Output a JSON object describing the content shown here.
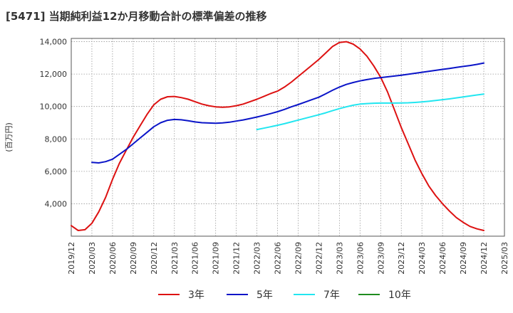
{
  "chart_data": {
    "type": "line",
    "title": "[5471]  当期純利益12か月移動合計の標準偏差の推移",
    "ylabel": "(百万円)",
    "xlabel": "",
    "ylim": [
      2000,
      14200
    ],
    "yticks": [
      4000,
      6000,
      8000,
      10000,
      12000,
      14000
    ],
    "ytick_labels": [
      "4,000",
      "6,000",
      "8,000",
      "10,000",
      "12,000",
      "14,000"
    ],
    "xticks": [
      "2019/12",
      "2020/03",
      "2020/06",
      "2020/09",
      "2020/12",
      "2021/03",
      "2021/06",
      "2021/09",
      "2021/12",
      "2022/03",
      "2022/06",
      "2022/09",
      "2022/12",
      "2023/03",
      "2023/06",
      "2023/09",
      "2023/12",
      "2024/03",
      "2024/06",
      "2024/09",
      "2024/12",
      "2025/03"
    ],
    "grid": true,
    "legend_position": "bottom",
    "series": [
      {
        "name": "3年",
        "color": "#dd1111",
        "points": [
          [
            "2019/12",
            2650
          ],
          [
            "2020/01",
            2350
          ],
          [
            "2020/02",
            2400
          ],
          [
            "2020/03",
            2800
          ],
          [
            "2020/04",
            3500
          ],
          [
            "2020/05",
            4400
          ],
          [
            "2020/06",
            5500
          ],
          [
            "2020/07",
            6500
          ],
          [
            "2020/08",
            7300
          ],
          [
            "2020/09",
            8100
          ],
          [
            "2020/10",
            8800
          ],
          [
            "2020/11",
            9500
          ],
          [
            "2020/12",
            10100
          ],
          [
            "2021/01",
            10450
          ],
          [
            "2021/02",
            10600
          ],
          [
            "2021/03",
            10620
          ],
          [
            "2021/04",
            10550
          ],
          [
            "2021/05",
            10450
          ],
          [
            "2021/06",
            10300
          ],
          [
            "2021/07",
            10150
          ],
          [
            "2021/08",
            10050
          ],
          [
            "2021/09",
            9980
          ],
          [
            "2021/10",
            9950
          ],
          [
            "2021/11",
            9980
          ],
          [
            "2021/12",
            10050
          ],
          [
            "2022/01",
            10150
          ],
          [
            "2022/02",
            10300
          ],
          [
            "2022/03",
            10450
          ],
          [
            "2022/04",
            10620
          ],
          [
            "2022/05",
            10800
          ],
          [
            "2022/06",
            10950
          ],
          [
            "2022/07",
            11200
          ],
          [
            "2022/08",
            11500
          ],
          [
            "2022/09",
            11850
          ],
          [
            "2022/10",
            12200
          ],
          [
            "2022/11",
            12550
          ],
          [
            "2022/12",
            12900
          ],
          [
            "2023/01",
            13300
          ],
          [
            "2023/02",
            13700
          ],
          [
            "2023/03",
            13950
          ],
          [
            "2023/04",
            14000
          ],
          [
            "2023/05",
            13850
          ],
          [
            "2023/06",
            13550
          ],
          [
            "2023/07",
            13100
          ],
          [
            "2023/08",
            12500
          ],
          [
            "2023/09",
            11800
          ],
          [
            "2023/10",
            10900
          ],
          [
            "2023/11",
            9800
          ],
          [
            "2023/12",
            8700
          ],
          [
            "2024/01",
            7700
          ],
          [
            "2024/02",
            6700
          ],
          [
            "2024/03",
            5850
          ],
          [
            "2024/04",
            5100
          ],
          [
            "2024/05",
            4500
          ],
          [
            "2024/06",
            4000
          ],
          [
            "2024/07",
            3550
          ],
          [
            "2024/08",
            3150
          ],
          [
            "2024/09",
            2850
          ],
          [
            "2024/10",
            2600
          ],
          [
            "2024/11",
            2450
          ],
          [
            "2024/12",
            2350
          ]
        ]
      },
      {
        "name": "5年",
        "color": "#0a14c8",
        "points": [
          [
            "2020/03",
            6550
          ],
          [
            "2020/04",
            6520
          ],
          [
            "2020/05",
            6600
          ],
          [
            "2020/06",
            6750
          ],
          [
            "2020/07",
            7050
          ],
          [
            "2020/08",
            7350
          ],
          [
            "2020/09",
            7700
          ],
          [
            "2020/10",
            8050
          ],
          [
            "2020/11",
            8400
          ],
          [
            "2020/12",
            8750
          ],
          [
            "2021/01",
            9000
          ],
          [
            "2021/02",
            9150
          ],
          [
            "2021/03",
            9200
          ],
          [
            "2021/04",
            9180
          ],
          [
            "2021/05",
            9120
          ],
          [
            "2021/06",
            9050
          ],
          [
            "2021/07",
            9000
          ],
          [
            "2021/08",
            8980
          ],
          [
            "2021/09",
            8970
          ],
          [
            "2021/10",
            8990
          ],
          [
            "2021/11",
            9030
          ],
          [
            "2021/12",
            9100
          ],
          [
            "2022/01",
            9170
          ],
          [
            "2022/02",
            9260
          ],
          [
            "2022/03",
            9350
          ],
          [
            "2022/04",
            9450
          ],
          [
            "2022/05",
            9560
          ],
          [
            "2022/06",
            9680
          ],
          [
            "2022/07",
            9820
          ],
          [
            "2022/08",
            9980
          ],
          [
            "2022/09",
            10120
          ],
          [
            "2022/10",
            10270
          ],
          [
            "2022/11",
            10420
          ],
          [
            "2022/12",
            10570
          ],
          [
            "2023/01",
            10780
          ],
          [
            "2023/02",
            11000
          ],
          [
            "2023/03",
            11200
          ],
          [
            "2023/04",
            11360
          ],
          [
            "2023/05",
            11480
          ],
          [
            "2023/06",
            11580
          ],
          [
            "2023/07",
            11660
          ],
          [
            "2023/08",
            11730
          ],
          [
            "2023/09",
            11780
          ],
          [
            "2023/10",
            11830
          ],
          [
            "2023/11",
            11880
          ],
          [
            "2023/12",
            11930
          ],
          [
            "2024/01",
            11990
          ],
          [
            "2024/02",
            12050
          ],
          [
            "2024/03",
            12110
          ],
          [
            "2024/04",
            12170
          ],
          [
            "2024/05",
            12230
          ],
          [
            "2024/06",
            12290
          ],
          [
            "2024/07",
            12350
          ],
          [
            "2024/08",
            12410
          ],
          [
            "2024/09",
            12470
          ],
          [
            "2024/10",
            12530
          ],
          [
            "2024/11",
            12600
          ],
          [
            "2024/12",
            12680
          ]
        ]
      },
      {
        "name": "7年",
        "color": "#22e6f0",
        "points": [
          [
            "2022/03",
            8580
          ],
          [
            "2022/04",
            8660
          ],
          [
            "2022/05",
            8750
          ],
          [
            "2022/06",
            8840
          ],
          [
            "2022/07",
            8940
          ],
          [
            "2022/08",
            9050
          ],
          [
            "2022/09",
            9160
          ],
          [
            "2022/10",
            9270
          ],
          [
            "2022/11",
            9380
          ],
          [
            "2022/12",
            9490
          ],
          [
            "2023/01",
            9610
          ],
          [
            "2023/02",
            9740
          ],
          [
            "2023/03",
            9870
          ],
          [
            "2023/04",
            9980
          ],
          [
            "2023/05",
            10080
          ],
          [
            "2023/06",
            10150
          ],
          [
            "2023/07",
            10180
          ],
          [
            "2023/08",
            10200
          ],
          [
            "2023/09",
            10210
          ],
          [
            "2023/10",
            10210
          ],
          [
            "2023/11",
            10210
          ],
          [
            "2023/12",
            10220
          ],
          [
            "2024/01",
            10230
          ],
          [
            "2024/02",
            10250
          ],
          [
            "2024/03",
            10280
          ],
          [
            "2024/04",
            10320
          ],
          [
            "2024/05",
            10370
          ],
          [
            "2024/06",
            10420
          ],
          [
            "2024/07",
            10470
          ],
          [
            "2024/08",
            10530
          ],
          [
            "2024/09",
            10590
          ],
          [
            "2024/10",
            10650
          ],
          [
            "2024/11",
            10710
          ],
          [
            "2024/12",
            10770
          ]
        ]
      },
      {
        "name": "10年",
        "color": "#1f8c1f",
        "points": []
      }
    ]
  }
}
